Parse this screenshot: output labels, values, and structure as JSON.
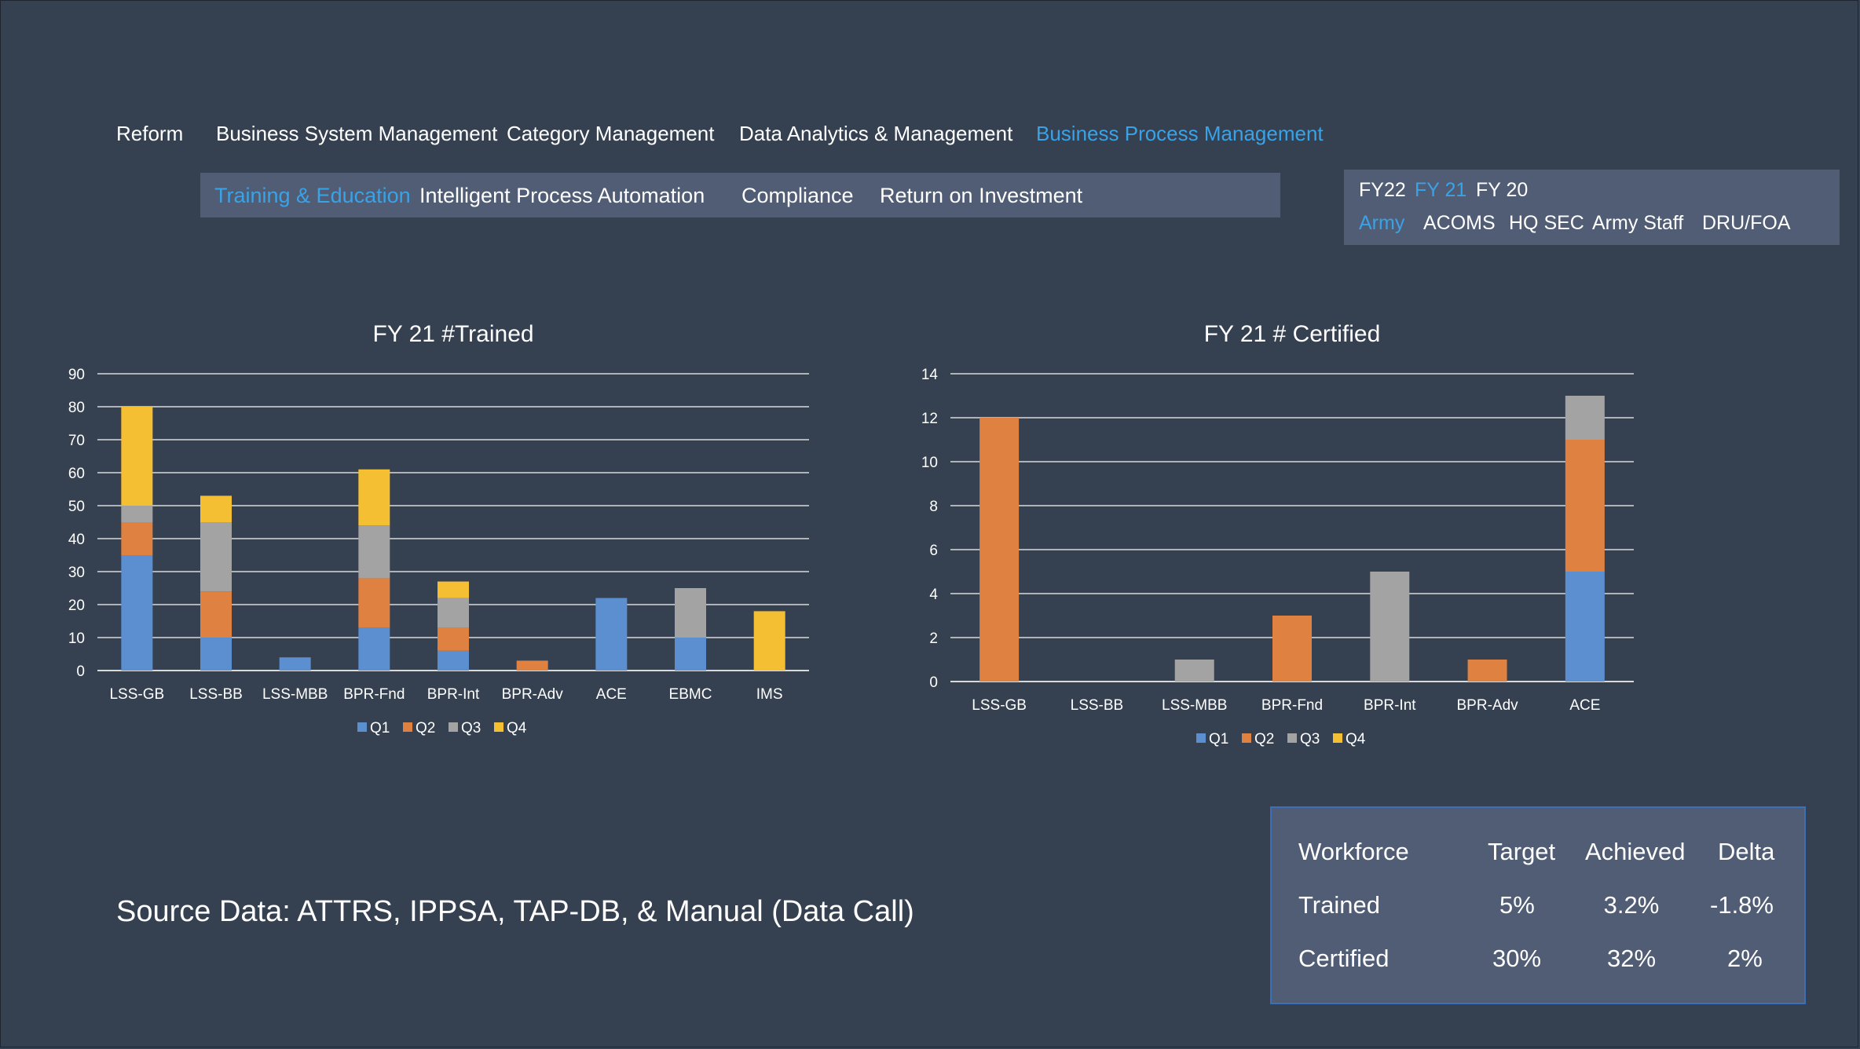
{
  "nav": {
    "items": [
      {
        "label": "Reform",
        "active": false
      },
      {
        "label": "Business System Management",
        "active": false
      },
      {
        "label": "Category Management",
        "active": false
      },
      {
        "label": "Data Analytics & Management",
        "active": false
      },
      {
        "label": "Business  Process Management",
        "active": true
      }
    ]
  },
  "subnav": {
    "items": [
      {
        "label": "Training & Education",
        "active": true
      },
      {
        "label": "Intelligent Process Automation",
        "active": false
      },
      {
        "label": "Compliance",
        "active": false
      },
      {
        "label": "Return on Investment",
        "active": false
      }
    ]
  },
  "filters": {
    "years": [
      {
        "label": "FY22",
        "active": false
      },
      {
        "label": "FY 21",
        "active": true
      },
      {
        "label": "FY 20",
        "active": false
      }
    ],
    "orgs": [
      {
        "label": "Army",
        "active": true
      },
      {
        "label": "ACOMS",
        "active": false
      },
      {
        "label": "HQ SEC",
        "active": false
      },
      {
        "label": "Army Staff",
        "active": false
      },
      {
        "label": "DRU/FOA",
        "active": false
      }
    ]
  },
  "colors": {
    "Q1": "#5b8fd0",
    "Q2": "#df8140",
    "Q3": "#a3a3a3",
    "Q4": "#f5bf33",
    "accent": "#3aa2e6"
  },
  "chart_data": [
    {
      "type": "bar",
      "stacked": true,
      "title": "FY 21 #Trained",
      "xlabel": "",
      "ylabel": "",
      "ylim": [
        0,
        90
      ],
      "yticks": [
        0,
        10,
        20,
        30,
        40,
        50,
        60,
        70,
        80,
        90
      ],
      "grid": true,
      "legend_position": "bottom",
      "categories": [
        "LSS-GB",
        "LSS-BB",
        "LSS-MBB",
        "BPR-Fnd",
        "BPR-Int",
        "BPR-Adv",
        "ACE",
        "EBMC",
        "IMS"
      ],
      "series": [
        {
          "name": "Q1",
          "values": [
            35,
            10,
            4,
            13,
            6,
            0,
            22,
            10,
            0
          ]
        },
        {
          "name": "Q2",
          "values": [
            10,
            14,
            0,
            15,
            7,
            3,
            0,
            0,
            0
          ]
        },
        {
          "name": "Q3",
          "values": [
            5,
            21,
            0,
            16,
            9,
            0,
            0,
            15,
            0
          ]
        },
        {
          "name": "Q4",
          "values": [
            30,
            8,
            0,
            17,
            5,
            0,
            0,
            0,
            18
          ]
        }
      ]
    },
    {
      "type": "bar",
      "stacked": true,
      "title": "FY 21 # Certified",
      "xlabel": "",
      "ylabel": "",
      "ylim": [
        0,
        14
      ],
      "yticks": [
        0,
        2,
        4,
        6,
        8,
        10,
        12,
        14
      ],
      "grid": true,
      "legend_position": "bottom",
      "categories": [
        "LSS-GB",
        "LSS-BB",
        "LSS-MBB",
        "BPR-Fnd",
        "BPR-Int",
        "BPR-Adv",
        "ACE"
      ],
      "series": [
        {
          "name": "Q1",
          "values": [
            0,
            0,
            0,
            0,
            0,
            0,
            5
          ]
        },
        {
          "name": "Q2",
          "values": [
            12,
            0,
            0,
            3,
            0,
            1,
            6
          ]
        },
        {
          "name": "Q3",
          "values": [
            0,
            0,
            1,
            0,
            5,
            0,
            2
          ]
        },
        {
          "name": "Q4",
          "values": [
            0,
            0,
            0,
            0,
            0,
            0,
            0
          ]
        }
      ]
    }
  ],
  "source_text": "Source Data: ATTRS, IPPSA, TAP-DB, & Manual (Data  Call)",
  "kpi": {
    "headers": [
      "Workforce",
      "Target",
      "Achieved",
      "Delta"
    ],
    "rows": [
      [
        "Trained",
        "5%",
        "3.2%",
        "-1.8%"
      ],
      [
        "Certified",
        "30%",
        "32%",
        "2%"
      ]
    ]
  }
}
